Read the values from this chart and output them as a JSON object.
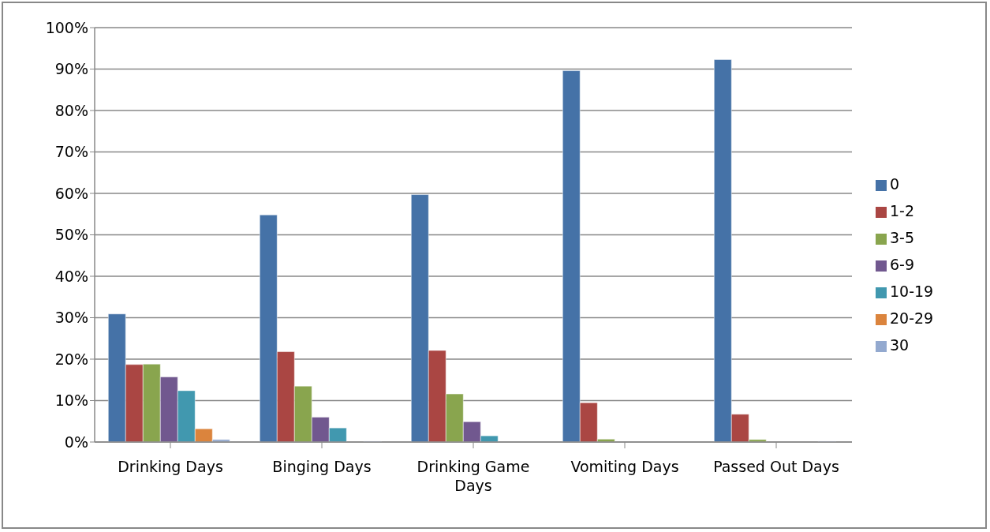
{
  "chart_data": {
    "type": "bar",
    "categories": [
      "Drinking Days",
      "Binging Days",
      "Drinking Game Days",
      "Vomiting Days",
      "Passed Out Days"
    ],
    "series": [
      {
        "name": "0",
        "color": "#4572a7",
        "values": [
          30.9,
          54.8,
          59.7,
          89.6,
          92.3
        ]
      },
      {
        "name": "1-2",
        "color": "#aa4643",
        "values": [
          18.7,
          21.8,
          22.1,
          9.5,
          6.7
        ]
      },
      {
        "name": "3-5",
        "color": "#89a54e",
        "values": [
          18.8,
          13.5,
          11.6,
          0.7,
          0.6
        ]
      },
      {
        "name": "6-9",
        "color": "#71588f",
        "values": [
          15.7,
          6.0,
          4.9,
          0,
          0
        ]
      },
      {
        "name": "10-19",
        "color": "#4198af",
        "values": [
          12.4,
          3.4,
          1.5,
          0,
          0
        ]
      },
      {
        "name": "20-29",
        "color": "#db843d",
        "values": [
          3.2,
          0,
          0,
          0,
          0
        ]
      },
      {
        "name": "30",
        "color": "#93a9cf",
        "values": [
          0.6,
          0.2,
          0,
          0,
          0.2
        ]
      }
    ],
    "ylim": [
      0,
      100
    ],
    "yticks": [
      {
        "value": 0,
        "label": "0%"
      },
      {
        "value": 10,
        "label": "10%"
      },
      {
        "value": 20,
        "label": "20%"
      },
      {
        "value": 30,
        "label": "30%"
      },
      {
        "value": 40,
        "label": "40%"
      },
      {
        "value": 50,
        "label": "50%"
      },
      {
        "value": 60,
        "label": "60%"
      },
      {
        "value": 70,
        "label": "70%"
      },
      {
        "value": 80,
        "label": "80%"
      },
      {
        "value": 90,
        "label": "90%"
      },
      {
        "value": 100,
        "label": "100%"
      }
    ],
    "grid": "y",
    "legend": "right"
  }
}
